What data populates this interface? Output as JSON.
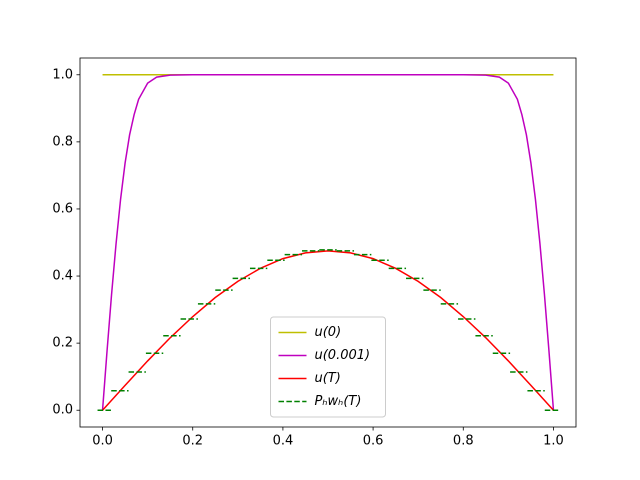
{
  "chart_data": {
    "type": "line",
    "xlim": [
      -0.05,
      1.05
    ],
    "ylim": [
      -0.05,
      1.05
    ],
    "xticks": [
      {
        "value": 0,
        "label": "0.0"
      },
      {
        "value": 0.2,
        "label": "0.2"
      },
      {
        "value": 0.4,
        "label": "0.4"
      },
      {
        "value": 0.6,
        "label": "0.6"
      },
      {
        "value": 0.8,
        "label": "0.8"
      },
      {
        "value": 1,
        "label": "1.0"
      }
    ],
    "yticks": [
      {
        "value": 0,
        "label": "0.0"
      },
      {
        "value": 0.2,
        "label": "0.2"
      },
      {
        "value": 0.4,
        "label": "0.4"
      },
      {
        "value": 0.6,
        "label": "0.6"
      },
      {
        "value": 0.8,
        "label": "0.8"
      },
      {
        "value": 1,
        "label": "1.0"
      }
    ],
    "legend": "lower center",
    "series": [
      {
        "name": "u(0)",
        "color": "#bfbf00",
        "style": "solid",
        "x": [
          0,
          1
        ],
        "values": [
          1,
          1
        ]
      },
      {
        "name": "u(0.001)",
        "color": "#bf00bf",
        "style": "solid",
        "x": [
          0,
          0.01,
          0.02,
          0.03,
          0.04,
          0.05,
          0.06,
          0.07,
          0.08,
          0.1,
          0.12,
          0.15,
          0.2,
          0.5,
          0.8,
          0.85,
          0.88,
          0.9,
          0.92,
          0.93,
          0.94,
          0.95,
          0.96,
          0.97,
          0.98,
          0.99,
          1
        ],
        "values": [
          0,
          0.177,
          0.345,
          0.497,
          0.629,
          0.737,
          0.821,
          0.881,
          0.927,
          0.975,
          0.993,
          0.999,
          1,
          1,
          1,
          0.999,
          0.993,
          0.975,
          0.927,
          0.881,
          0.821,
          0.737,
          0.629,
          0.497,
          0.345,
          0.177,
          0
        ]
      },
      {
        "name": "u(T)",
        "color": "#ff0000",
        "style": "solid",
        "x": [
          0,
          0.05,
          0.1,
          0.15,
          0.2,
          0.25,
          0.3,
          0.35,
          0.4,
          0.45,
          0.5,
          0.55,
          0.6,
          0.65,
          0.7,
          0.75,
          0.8,
          0.85,
          0.9,
          0.95,
          1
        ],
        "values": [
          0,
          0.074,
          0.147,
          0.216,
          0.279,
          0.336,
          0.384,
          0.423,
          0.452,
          0.469,
          0.475,
          0.469,
          0.452,
          0.423,
          0.384,
          0.336,
          0.279,
          0.216,
          0.147,
          0.074,
          0
        ]
      },
      {
        "name": "Pₕwₕ(T)",
        "color": "#008000",
        "style": "dashed-steps",
        "x": [
          0,
          0.0385,
          0.0769,
          0.1154,
          0.1538,
          0.1923,
          0.2308,
          0.2692,
          0.3077,
          0.3462,
          0.3846,
          0.4231,
          0.4615,
          0.5,
          0.5385,
          0.5769,
          0.6154,
          0.6538,
          0.6923,
          0.7308,
          0.7692,
          0.8077,
          0.8462,
          0.8846,
          0.9231,
          0.9615,
          1
        ],
        "values": [
          0,
          0.058,
          0.114,
          0.17,
          0.222,
          0.272,
          0.317,
          0.358,
          0.393,
          0.423,
          0.447,
          0.464,
          0.475,
          0.478,
          0.475,
          0.464,
          0.447,
          0.423,
          0.393,
          0.358,
          0.317,
          0.272,
          0.222,
          0.17,
          0.114,
          0.058,
          0
        ]
      }
    ]
  }
}
